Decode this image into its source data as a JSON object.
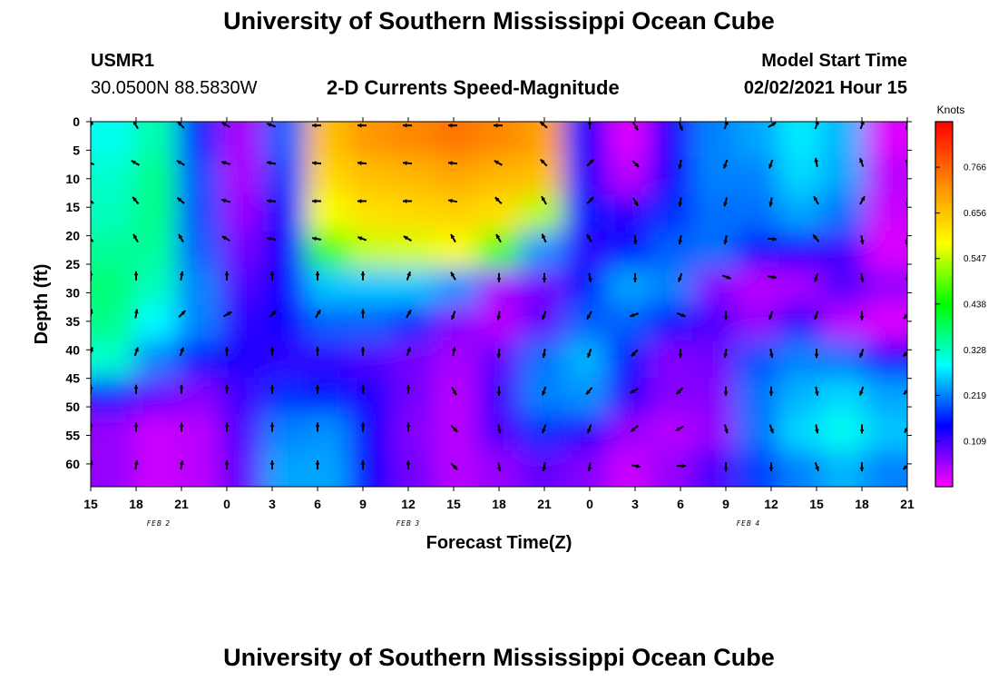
{
  "title_top": "University of Southern Mississippi Ocean Cube",
  "title_bottom": "University of Southern Mississippi Ocean Cube",
  "station": {
    "id": "USMR1",
    "coords": "30.0500N 88.5830W"
  },
  "model": {
    "label": "Model Start Time",
    "value": "02/02/2021 Hour 15"
  },
  "chart_data": {
    "type": "heatmap",
    "title": "2-D Currents Speed-Magnitude",
    "xlabel": "Forecast Time(Z)",
    "ylabel": "Depth (ft)",
    "x_tick_labels": [
      "15",
      "18",
      "21",
      "0",
      "3",
      "6",
      "9",
      "12",
      "15",
      "18",
      "21",
      "0",
      "3",
      "6",
      "9",
      "12",
      "15",
      "18",
      "21"
    ],
    "x_date_labels": [
      "FEB 2",
      "FEB 3",
      "FEB 4"
    ],
    "y_ticks": [
      0,
      5,
      10,
      15,
      20,
      25,
      30,
      35,
      40,
      45,
      50,
      55,
      60
    ],
    "ylim": [
      0,
      64
    ],
    "y_inverted": true,
    "colorbar": {
      "unit": "Knots",
      "ticks": [
        "0.766",
        "0.656",
        "0.547",
        "0.438",
        "0.328",
        "0.219",
        "0.109"
      ],
      "range": [
        0,
        0.875
      ],
      "colors_bottom_to_top": [
        "#ff00ff",
        "#0000ff",
        "#00ffff",
        "#00ff00",
        "#ffff00",
        "#ff8800",
        "#ff0000"
      ]
    },
    "speed_knots": [
      [
        0.3,
        0.34,
        0.17,
        0.05,
        0.2,
        0.66,
        0.71,
        0.73,
        0.75,
        0.73,
        0.7,
        0.14,
        0.02,
        0.13,
        0.22,
        0.24,
        0.28,
        0.25,
        0.02
      ],
      [
        0.32,
        0.36,
        0.19,
        0.05,
        0.18,
        0.63,
        0.66,
        0.67,
        0.69,
        0.67,
        0.66,
        0.13,
        0.04,
        0.14,
        0.22,
        0.22,
        0.27,
        0.24,
        0.04
      ],
      [
        0.33,
        0.36,
        0.19,
        0.06,
        0.15,
        0.58,
        0.62,
        0.63,
        0.64,
        0.62,
        0.54,
        0.16,
        0.12,
        0.17,
        0.21,
        0.21,
        0.24,
        0.21,
        0.03
      ],
      [
        0.35,
        0.35,
        0.2,
        0.08,
        0.14,
        0.47,
        0.55,
        0.56,
        0.58,
        0.48,
        0.23,
        0.12,
        0.15,
        0.2,
        0.21,
        0.15,
        0.14,
        0.11,
        0.02
      ],
      [
        0.37,
        0.33,
        0.22,
        0.1,
        0.14,
        0.26,
        0.26,
        0.26,
        0.23,
        0.05,
        0.08,
        0.16,
        0.24,
        0.22,
        0.07,
        0.04,
        0.05,
        0.1,
        0.06
      ],
      [
        0.36,
        0.29,
        0.22,
        0.12,
        0.14,
        0.2,
        0.2,
        0.17,
        0.07,
        0.04,
        0.09,
        0.2,
        0.2,
        0.15,
        0.1,
        0.06,
        0.12,
        0.04,
        0.02
      ],
      [
        0.32,
        0.22,
        0.16,
        0.13,
        0.12,
        0.12,
        0.1,
        0.08,
        0.05,
        0.09,
        0.21,
        0.25,
        0.16,
        0.07,
        0.08,
        0.19,
        0.22,
        0.21,
        0.14
      ],
      [
        0.16,
        0.09,
        0.07,
        0.11,
        0.17,
        0.16,
        0.13,
        0.08,
        0.04,
        0.11,
        0.22,
        0.23,
        0.12,
        0.07,
        0.07,
        0.21,
        0.25,
        0.27,
        0.24
      ],
      [
        0.06,
        0.03,
        0.04,
        0.1,
        0.22,
        0.23,
        0.14,
        0.07,
        0.04,
        0.1,
        0.17,
        0.13,
        0.06,
        0.04,
        0.06,
        0.21,
        0.27,
        0.3,
        0.26
      ],
      [
        0.06,
        0.03,
        0.04,
        0.09,
        0.24,
        0.24,
        0.14,
        0.08,
        0.04,
        0.06,
        0.09,
        0.07,
        0.03,
        0.06,
        0.1,
        0.18,
        0.22,
        0.25,
        0.22
      ]
    ],
    "vectors_direction_deg": [
      [
        20,
        330,
        315,
        300,
        290,
        270,
        270,
        270,
        270,
        270,
        310,
        0,
        150,
        160,
        20,
        60,
        20,
        20,
        20
      ],
      [
        290,
        300,
        300,
        285,
        280,
        275,
        275,
        275,
        275,
        300,
        315,
        45,
        135,
        190,
        200,
        200,
        350,
        340,
        160
      ],
      [
        310,
        320,
        310,
        285,
        275,
        270,
        270,
        270,
        280,
        315,
        330,
        45,
        150,
        190,
        195,
        190,
        330,
        30,
        180
      ],
      [
        320,
        330,
        330,
        300,
        280,
        280,
        290,
        300,
        330,
        330,
        335,
        330,
        175,
        190,
        190,
        95,
        320,
        170,
        190
      ],
      [
        0,
        0,
        10,
        0,
        0,
        0,
        0,
        20,
        330,
        180,
        180,
        170,
        180,
        200,
        110,
        100,
        200,
        170,
        180
      ],
      [
        10,
        10,
        45,
        60,
        45,
        30,
        0,
        30,
        200,
        190,
        200,
        210,
        250,
        110,
        180,
        200,
        200,
        180,
        220
      ],
      [
        20,
        20,
        20,
        0,
        0,
        0,
        0,
        20,
        10,
        185,
        190,
        200,
        225,
        180,
        190,
        170,
        180,
        200,
        225
      ],
      [
        0,
        0,
        0,
        0,
        0,
        0,
        0,
        0,
        150,
        180,
        200,
        220,
        240,
        225,
        180,
        180,
        170,
        200,
        220
      ],
      [
        0,
        0,
        0,
        0,
        0,
        0,
        0,
        0,
        135,
        170,
        200,
        200,
        230,
        240,
        165,
        160,
        170,
        180,
        210
      ],
      [
        10,
        10,
        10,
        0,
        0,
        0,
        0,
        0,
        135,
        170,
        190,
        190,
        100,
        90,
        180,
        180,
        160,
        180,
        230
      ]
    ]
  }
}
